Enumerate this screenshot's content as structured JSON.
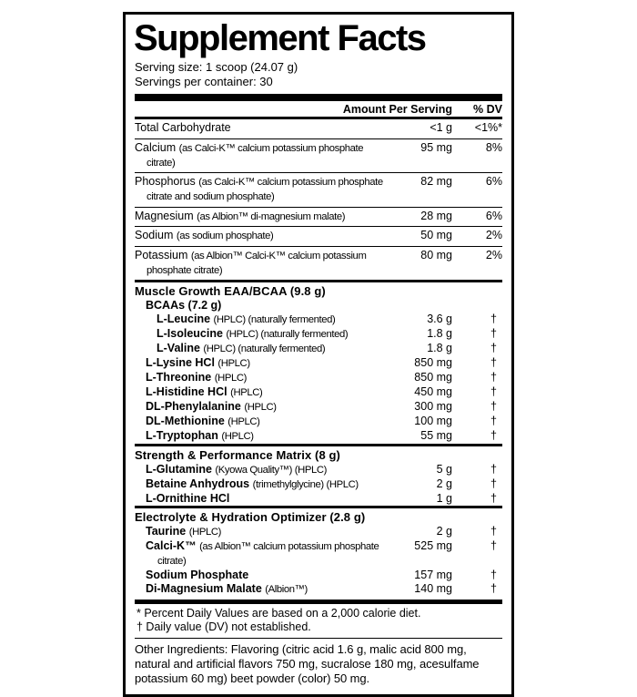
{
  "colors": {
    "background": "#ffffff",
    "text": "#000000",
    "rule": "#000000"
  },
  "label": {
    "title": "Supplement Facts",
    "serving_size": "Serving size: 1 scoop (24.07 g)",
    "servings_per_container": "Servings per container: 30",
    "columns": {
      "amount": "Amount Per Serving",
      "dv": "% DV"
    },
    "minerals": [
      {
        "name": "Total Carbohydrate",
        "desc": "",
        "amount": "<1 g",
        "dv": "<1%*"
      },
      {
        "name": "Calcium",
        "desc": "(as Calci-K™ calcium potassium phosphate citrate)",
        "amount": "95 mg",
        "dv": "8%"
      },
      {
        "name": "Phosphorus",
        "desc": "(as Calci-K™ calcium potassium phosphate citrate and sodium phosphate)",
        "amount": "82 mg",
        "dv": "6%"
      },
      {
        "name": "Magnesium",
        "desc": "(as Albion™ di-magnesium malate)",
        "amount": "28 mg",
        "dv": "6%"
      },
      {
        "name": "Sodium",
        "desc": "(as sodium phosphate)",
        "amount": "50 mg",
        "dv": "2%"
      },
      {
        "name": "Potassium",
        "desc": "(as Albion™ Calci-K™ calcium potassium phosphate citrate)",
        "amount": "80 mg",
        "dv": "2%"
      }
    ],
    "sections": [
      {
        "title": "Muscle Growth EAA/BCAA (9.8 g)",
        "items": [
          {
            "name": "BCAAs (7.2 g)",
            "desc": "",
            "amount": "",
            "dv": ""
          },
          {
            "name": "L-Leucine",
            "desc": "(HPLC) (naturally fermented)",
            "amount": "3.6 g",
            "dv": "†"
          },
          {
            "name": "L-Isoleucine",
            "desc": "(HPLC) (naturally fermented)",
            "amount": "1.8 g",
            "dv": "†"
          },
          {
            "name": "L-Valine",
            "desc": "(HPLC) (naturally fermented)",
            "amount": "1.8 g",
            "dv": "†"
          },
          {
            "name": "L-Lysine HCl",
            "desc": "(HPLC)",
            "amount": "850 mg",
            "dv": "†"
          },
          {
            "name": "L-Threonine",
            "desc": "(HPLC)",
            "amount": "850 mg",
            "dv": "†"
          },
          {
            "name": "L-Histidine HCl",
            "desc": "(HPLC)",
            "amount": "450 mg",
            "dv": "†"
          },
          {
            "name": "DL-Phenylalanine",
            "desc": "(HPLC)",
            "amount": "300 mg",
            "dv": "†"
          },
          {
            "name": "DL-Methionine",
            "desc": "(HPLC)",
            "amount": "100 mg",
            "dv": "†"
          },
          {
            "name": "L-Tryptophan",
            "desc": "(HPLC)",
            "amount": "55 mg",
            "dv": "†"
          }
        ]
      },
      {
        "title": "Strength & Performance Matrix (8 g)",
        "items": [
          {
            "name": "L-Glutamine",
            "desc": "(Kyowa Quality™) (HPLC)",
            "amount": "5 g",
            "dv": "†"
          },
          {
            "name": "Betaine Anhydrous",
            "desc": "(trimethylglycine) (HPLC)",
            "amount": "2 g",
            "dv": "†"
          },
          {
            "name": "L-Ornithine HCl",
            "desc": "",
            "amount": "1 g",
            "dv": "†"
          }
        ]
      },
      {
        "title": "Electrolyte & Hydration Optimizer (2.8 g)",
        "items": [
          {
            "name": "Taurine",
            "desc": "(HPLC)",
            "amount": "2 g",
            "dv": "†"
          },
          {
            "name": "Calci-K™",
            "desc": "(as Albion™ calcium potassium phosphate citrate)",
            "amount": "525 mg",
            "dv": "†"
          },
          {
            "name": "Sodium Phosphate",
            "desc": "",
            "amount": "157 mg",
            "dv": "†"
          },
          {
            "name": "Di-Magnesium Malate",
            "desc": "(Albion™)",
            "amount": "140 mg",
            "dv": "†"
          }
        ]
      }
    ],
    "footnotes": [
      "* Percent Daily Values are based on a 2,000 calorie diet.",
      "† Daily value (DV) not established."
    ],
    "other_ingredients": "Other Ingredients: Flavoring (citric acid 1.6 g, malic acid 800 mg, natural and artificial flavors 750 mg, sucralose 180 mg, acesulfame potassium 60 mg) beet powder (color) 50 mg."
  }
}
